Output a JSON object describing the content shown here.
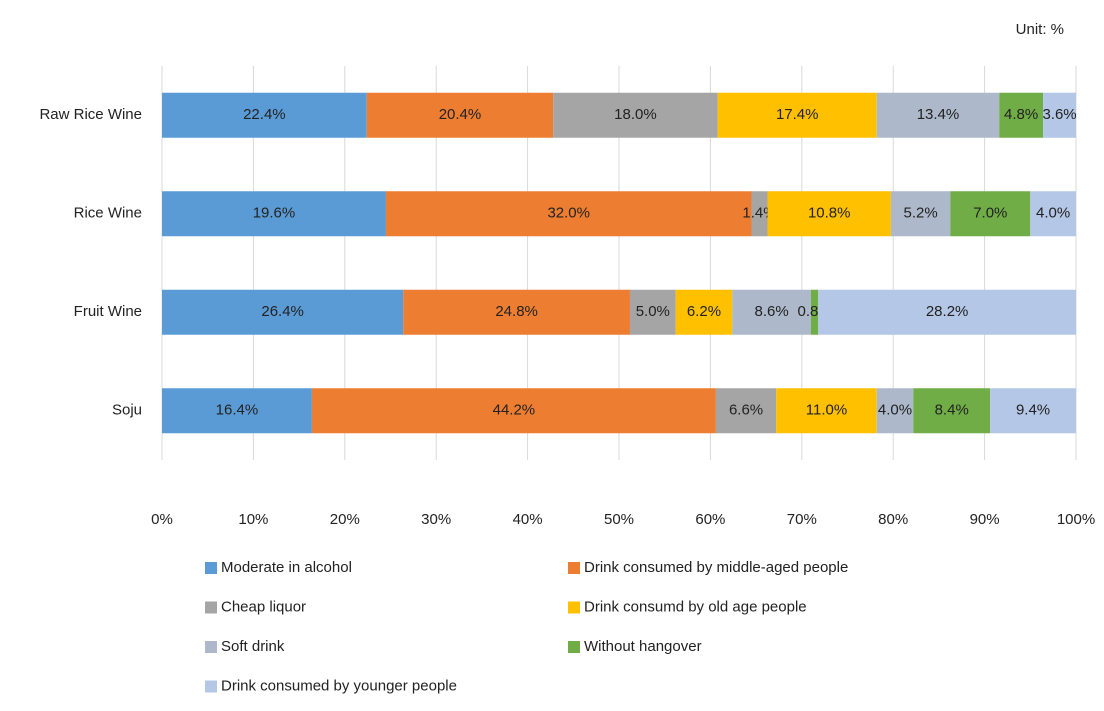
{
  "chart_data": {
    "type": "stacked_bar_horizontal",
    "stack": "percent",
    "annotation": "Unit: %",
    "categories": [
      "Raw Rice Wine",
      "Rice Wine",
      "Fruit Wine",
      "Soju"
    ],
    "series": [
      {
        "name": "Moderate in alcohol",
        "color": "#5b9bd5",
        "values": [
          22.4,
          19.6,
          26.4,
          16.4
        ],
        "value_labels": [
          "22.4%",
          "19.6%",
          "26.4%",
          "16.4%"
        ]
      },
      {
        "name": "Drink consumed by middle-aged people",
        "color": "#ed7d31",
        "values": [
          20.4,
          32.0,
          24.8,
          44.2
        ],
        "value_labels": [
          "20.4%",
          "32.0%",
          "24.8%",
          "44.2%"
        ]
      },
      {
        "name": "Cheap liquor",
        "color": "#a5a5a5",
        "values": [
          18.0,
          1.4,
          5.0,
          6.6
        ],
        "value_labels": [
          "18.0%",
          "1.4%",
          "5.0%",
          "6.6%"
        ]
      },
      {
        "name": "Drink consumd by old age people",
        "color": "#ffc000",
        "values": [
          17.4,
          10.8,
          6.2,
          11.0
        ],
        "value_labels": [
          "17.4%",
          "10.8%",
          "6.2%",
          "11.0%"
        ]
      },
      {
        "name": "Soft drink",
        "color": "#adb9ca",
        "values": [
          13.4,
          5.2,
          8.6,
          4.0
        ],
        "value_labels": [
          "13.4%",
          "5.2%",
          "8.6%",
          "4.0%"
        ]
      },
      {
        "name": "Without hangover",
        "color": "#70ad47",
        "values": [
          4.8,
          7.0,
          0.8,
          8.4
        ],
        "value_labels": [
          "4.8%",
          "7.0%",
          "0.8%",
          "8.4%"
        ]
      },
      {
        "name": "Drink consumed by younger people",
        "color": "#b4c7e7",
        "values": [
          3.6,
          4.0,
          28.2,
          9.4
        ],
        "value_labels": [
          "3.6%",
          "4.0%",
          "28.2%",
          "9.4%"
        ]
      }
    ],
    "xlim": [
      0,
      100
    ],
    "xticks": [
      {
        "value": 0,
        "label": "0%"
      },
      {
        "value": 10,
        "label": "10%"
      },
      {
        "value": 20,
        "label": "20%"
      },
      {
        "value": 30,
        "label": "30%"
      },
      {
        "value": 40,
        "label": "40%"
      },
      {
        "value": 50,
        "label": "50%"
      },
      {
        "value": 60,
        "label": "60%"
      },
      {
        "value": 70,
        "label": "70%"
      },
      {
        "value": 80,
        "label": "80%"
      },
      {
        "value": 90,
        "label": "90%"
      },
      {
        "value": 100,
        "label": "100%"
      }
    ],
    "grid": true
  }
}
